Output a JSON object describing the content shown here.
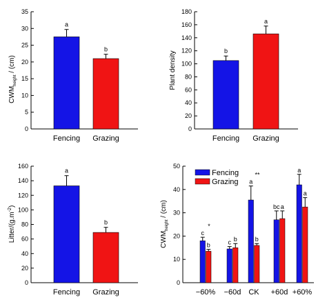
{
  "chart_data": [
    {
      "type": "bar",
      "categories": [
        "Fencing",
        "Grazing"
      ],
      "series": [
        {
          "values": [
            27.5,
            21.0
          ],
          "errors": [
            2.2,
            1.3
          ],
          "colors": [
            "#1414e6",
            "#f01414"
          ]
        }
      ],
      "sig_labels": [
        "a",
        "b"
      ],
      "ylabel": {
        "main": "CWM",
        "sub": "height",
        "rest": " / (cm)"
      },
      "ylim": [
        0,
        35
      ],
      "yticks": [
        0,
        5,
        10,
        15,
        20,
        25,
        30,
        35
      ]
    },
    {
      "type": "bar",
      "categories": [
        "Fencing",
        "Grazing"
      ],
      "series": [
        {
          "values": [
            105,
            146
          ],
          "errors": [
            7,
            12
          ],
          "colors": [
            "#1414e6",
            "#f01414"
          ]
        }
      ],
      "sig_labels": [
        "b",
        "a"
      ],
      "ylabel": {
        "main": "Plant density",
        "sub": "",
        "rest": ""
      },
      "ylim": [
        0,
        180
      ],
      "yticks": [
        0,
        20,
        40,
        60,
        80,
        100,
        120,
        140,
        160,
        180
      ]
    },
    {
      "type": "bar",
      "categories": [
        "Fencing",
        "Grazing"
      ],
      "series": [
        {
          "values": [
            133,
            69
          ],
          "errors": [
            14,
            7
          ],
          "colors": [
            "#1414e6",
            "#f01414"
          ]
        }
      ],
      "sig_labels": [
        "a",
        "b"
      ],
      "ylabel": {
        "main": "Litter/(g.m",
        "sup": "-2",
        "rest": ")"
      },
      "ylim": [
        0,
        160
      ],
      "yticks": [
        0,
        20,
        40,
        60,
        80,
        100,
        120,
        140,
        160
      ]
    },
    {
      "type": "bar",
      "categories": [
        "−60%",
        "−60d",
        "CK",
        "+60d",
        "+60%"
      ],
      "series": [
        {
          "name": "Fencing",
          "color": "#1414e6",
          "values": [
            18.0,
            14.5,
            35.5,
            27.0,
            42.0
          ],
          "errors": [
            1.5,
            1.0,
            6.0,
            3.8,
            4.5
          ],
          "sig": [
            "c",
            "c",
            "a",
            "bc",
            "a"
          ]
        },
        {
          "name": "Grazing",
          "color": "#f01414",
          "values": [
            13.5,
            15.0,
            16.0,
            27.5,
            32.5
          ],
          "errors": [
            0.8,
            1.8,
            0.8,
            3.3,
            4.0
          ],
          "sig": [
            "b",
            "b",
            "b",
            "a",
            "a"
          ]
        }
      ],
      "stars": [
        "*",
        "",
        "**",
        "",
        ""
      ],
      "ylabel": {
        "main": "CWM",
        "sub": "height",
        "rest": " / (cm)"
      },
      "ylim": [
        0,
        50
      ],
      "yticks": [
        0,
        10,
        20,
        30,
        40,
        50
      ],
      "legend": "top-left"
    }
  ]
}
